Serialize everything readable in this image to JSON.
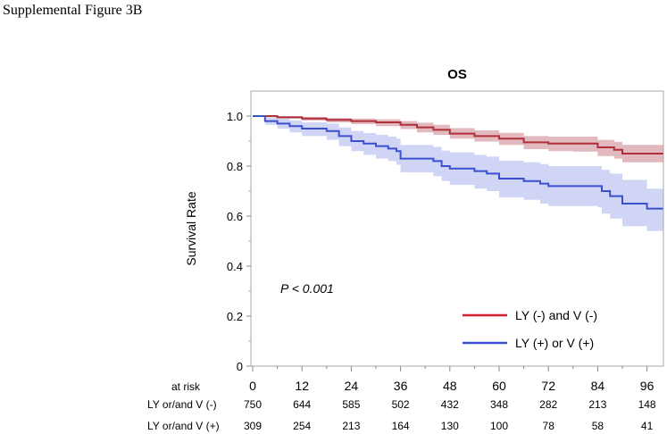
{
  "figure_title": "Supplemental Figure 3B",
  "chart_data": {
    "type": "line",
    "subtype": "kaplan-meier",
    "title": "OS",
    "xlabel": "",
    "ylabel": "Survival Rate",
    "xlim": [
      0,
      100
    ],
    "ylim": [
      0,
      1.1
    ],
    "xticks": [
      0,
      12,
      24,
      36,
      48,
      60,
      72,
      84,
      96
    ],
    "yticks": [
      "0",
      "0.2",
      "0.4",
      "0.6",
      "0.8",
      "1.0"
    ],
    "ytick_values": [
      0,
      0.2,
      0.4,
      0.6,
      0.8,
      1.0
    ],
    "annotation": "P < 0.001",
    "legend_position": "bottom-right",
    "series": [
      {
        "name": "LY (-) and V (-)",
        "color": "#b0303a",
        "band_color": "#d9a8ae",
        "x": [
          0,
          6,
          12,
          18,
          24,
          30,
          36,
          40,
          44,
          48,
          54,
          60,
          66,
          72,
          78,
          84,
          88,
          90,
          100
        ],
        "y": [
          1.0,
          0.995,
          0.99,
          0.985,
          0.98,
          0.975,
          0.965,
          0.955,
          0.945,
          0.93,
          0.92,
          0.91,
          0.895,
          0.89,
          0.89,
          0.875,
          0.865,
          0.85,
          0.85
        ],
        "ci_low": [
          1.0,
          0.99,
          0.982,
          0.975,
          0.968,
          0.96,
          0.948,
          0.935,
          0.925,
          0.91,
          0.898,
          0.885,
          0.868,
          0.86,
          0.858,
          0.84,
          0.83,
          0.815,
          0.815
        ],
        "ci_high": [
          1.0,
          1.0,
          0.997,
          0.993,
          0.99,
          0.987,
          0.98,
          0.973,
          0.965,
          0.952,
          0.943,
          0.933,
          0.92,
          0.918,
          0.918,
          0.905,
          0.897,
          0.885,
          0.885
        ]
      },
      {
        "name": "LY (+) or V (+)",
        "color": "#3b4fd0",
        "band_color": "#c4cbf2",
        "x": [
          0,
          3,
          6,
          9,
          12,
          18,
          21,
          24,
          27,
          30,
          33,
          35,
          36,
          44,
          46,
          48,
          54,
          57,
          60,
          66,
          70,
          72,
          84,
          85,
          87,
          90,
          96,
          100
        ],
        "y": [
          1.0,
          0.98,
          0.97,
          0.96,
          0.95,
          0.94,
          0.92,
          0.9,
          0.89,
          0.88,
          0.87,
          0.86,
          0.83,
          0.82,
          0.8,
          0.79,
          0.78,
          0.77,
          0.75,
          0.74,
          0.73,
          0.72,
          0.72,
          0.7,
          0.68,
          0.65,
          0.63,
          0.63
        ],
        "ci_low": [
          1.0,
          0.965,
          0.95,
          0.935,
          0.92,
          0.905,
          0.88,
          0.86,
          0.845,
          0.83,
          0.82,
          0.805,
          0.775,
          0.76,
          0.74,
          0.725,
          0.71,
          0.7,
          0.675,
          0.665,
          0.65,
          0.64,
          0.635,
          0.61,
          0.59,
          0.56,
          0.54,
          0.54
        ],
        "ci_high": [
          1.0,
          0.995,
          0.99,
          0.982,
          0.975,
          0.97,
          0.955,
          0.94,
          0.932,
          0.925,
          0.918,
          0.91,
          0.885,
          0.877,
          0.862,
          0.855,
          0.845,
          0.838,
          0.822,
          0.815,
          0.808,
          0.8,
          0.8,
          0.785,
          0.77,
          0.745,
          0.71,
          0.71
        ]
      }
    ],
    "risk_table": {
      "header": "at risk",
      "rows": [
        {
          "label": "LY or/and V (-)",
          "values": [
            750,
            644,
            585,
            502,
            432,
            348,
            282,
            213,
            148
          ]
        },
        {
          "label": "LY or/and V (+)",
          "values": [
            309,
            254,
            213,
            164,
            130,
            100,
            78,
            58,
            41
          ]
        }
      ]
    }
  }
}
